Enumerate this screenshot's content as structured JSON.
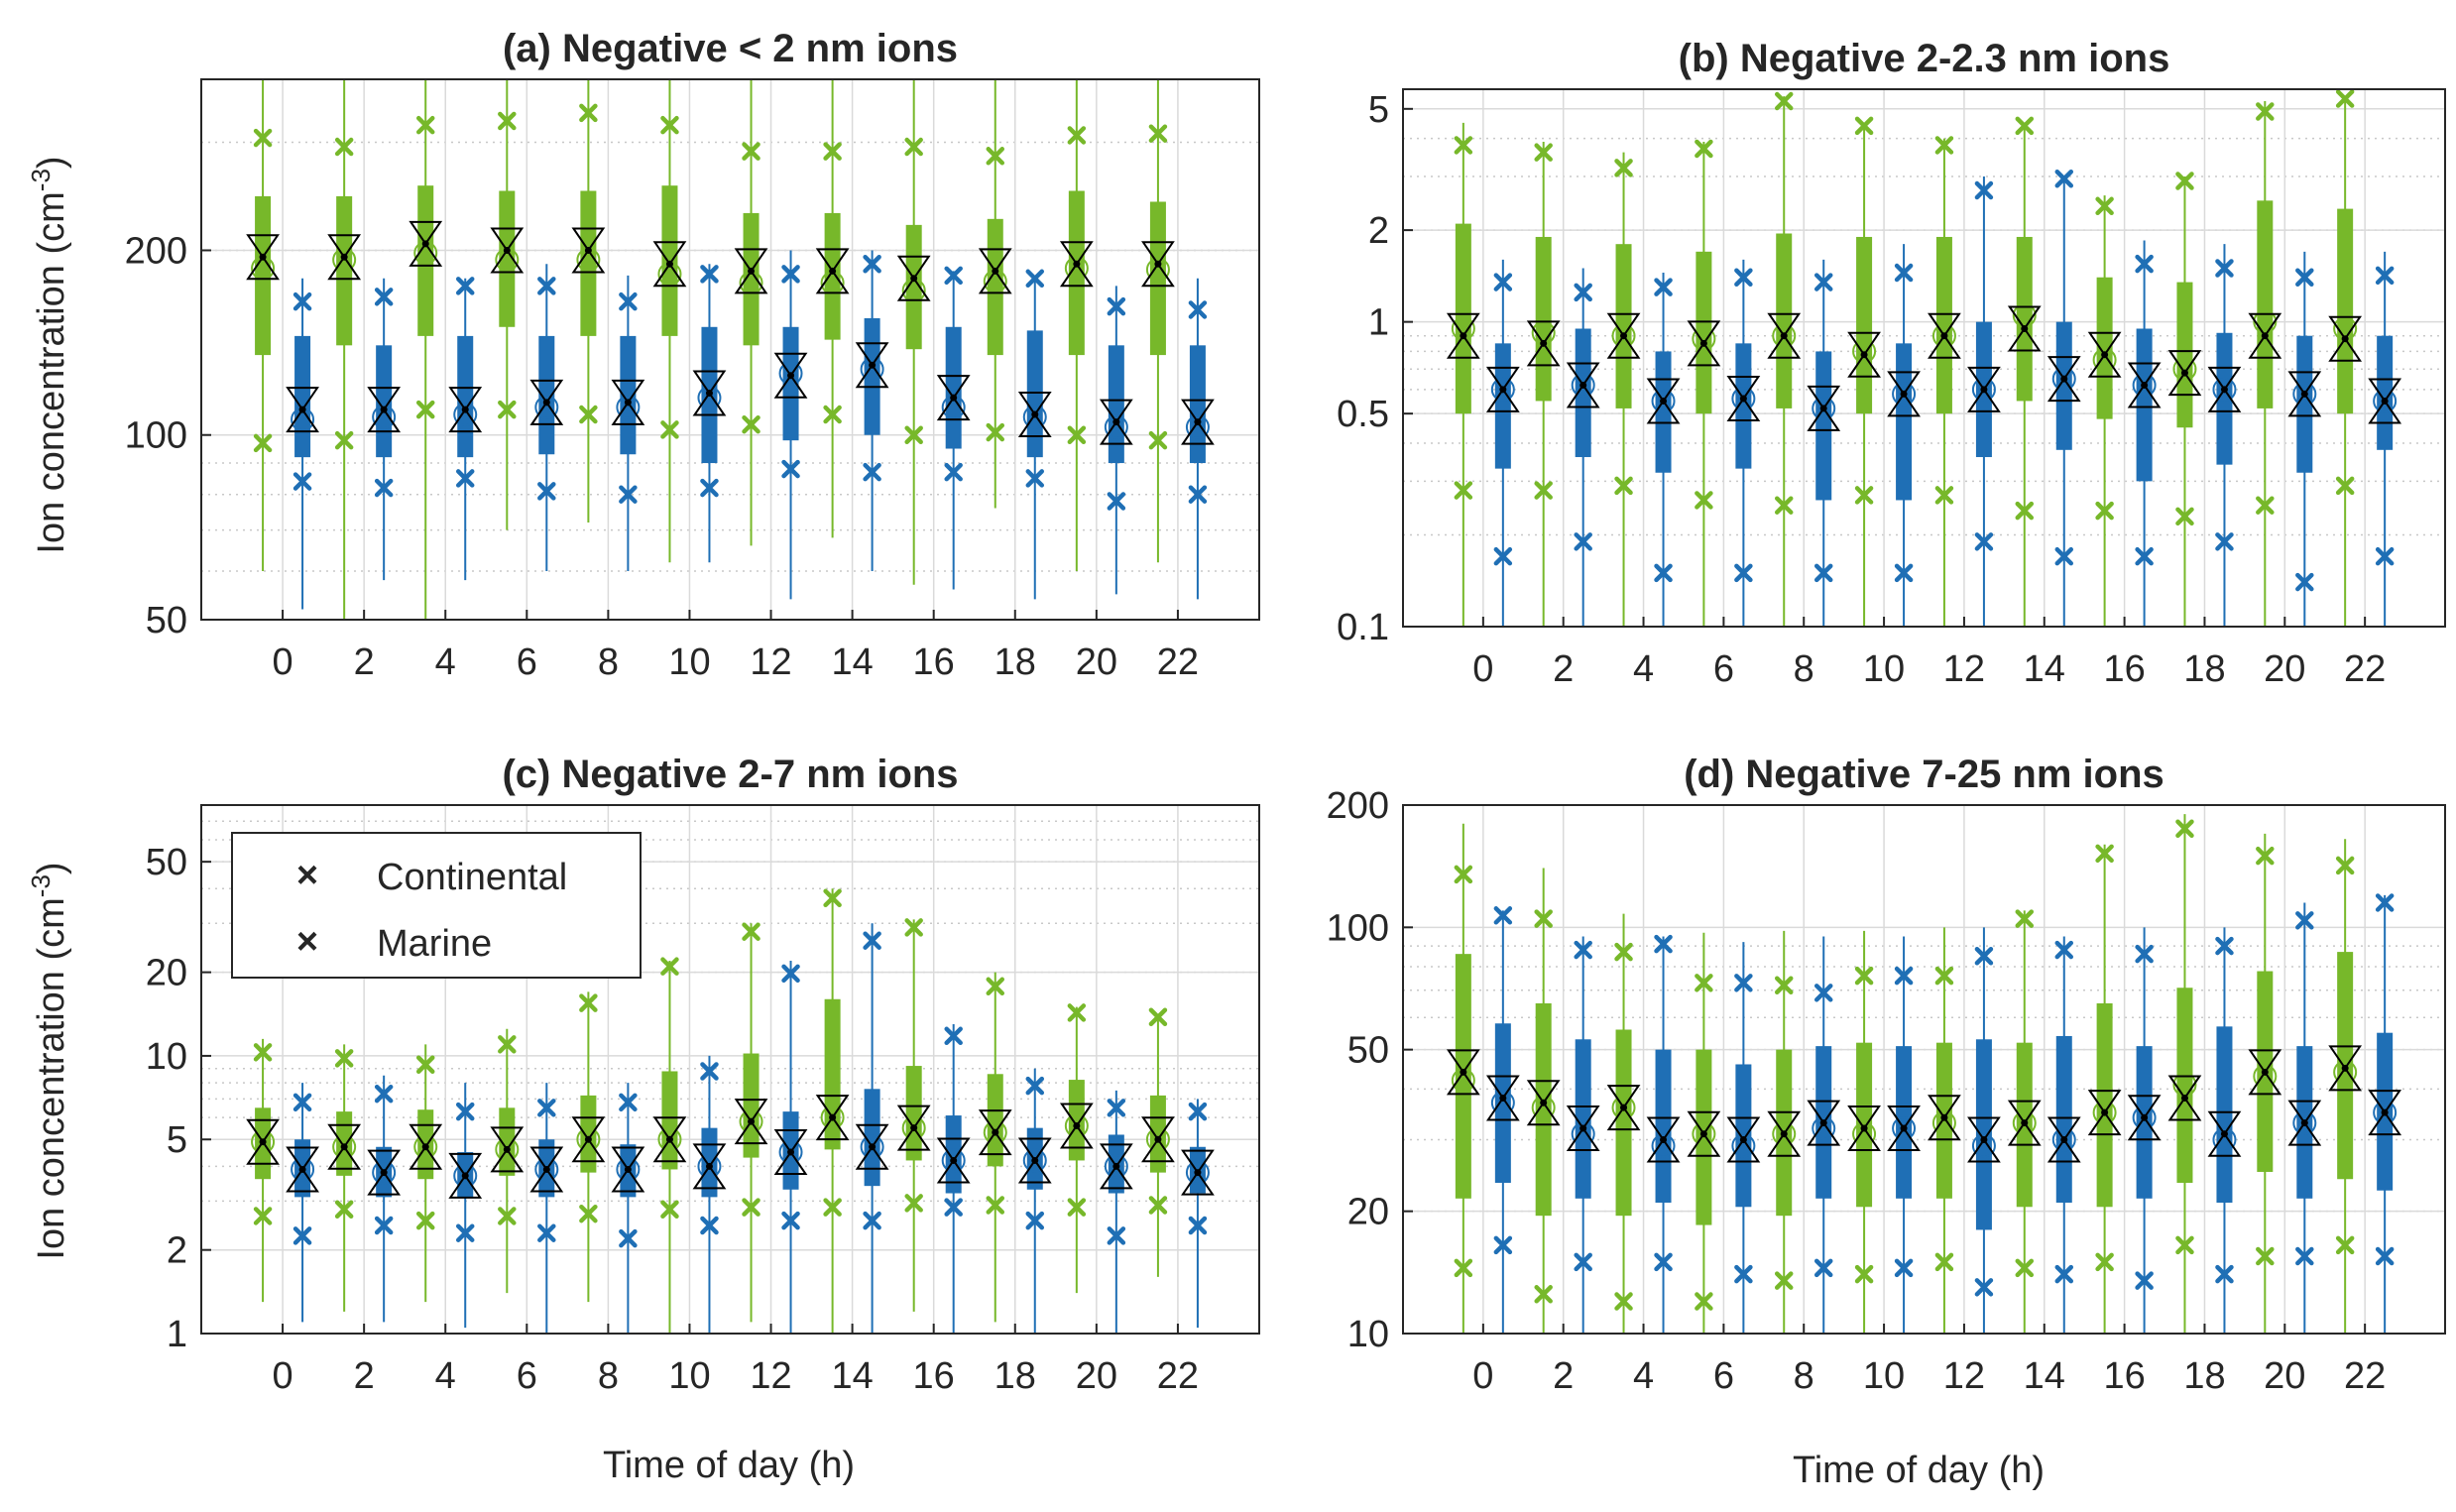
{
  "colors": {
    "continental": "#77b82a",
    "marine": "#1f6fb5",
    "axis": "#262626",
    "grid_major": "#dadada",
    "grid_minor": "#c8c8c8"
  },
  "legend": {
    "continental": "Continental",
    "marine": "Marine",
    "marker": "×"
  },
  "labels": {
    "ylabel": "Ion concentration (cm",
    "ylabel_exp": "-3",
    "ylabel_close": ")",
    "xlabel": "Time of day (h)"
  },
  "chart_data": [
    {
      "type": "box",
      "title": "(a) Negative < 2 nm ions",
      "xlabel": "",
      "ylabel": "Ion concentration (cm-3)",
      "yscale": "log",
      "ylim": [
        50,
        380
      ],
      "yticks": [
        50,
        100,
        200
      ],
      "categories": [
        "0",
        "2",
        "4",
        "6",
        "8",
        "10",
        "12",
        "14",
        "16",
        "18",
        "20",
        "22"
      ],
      "series": [
        {
          "name": "Continental",
          "color": "#77b82a",
          "whisker_low": [
            60,
            50,
            50,
            70,
            72,
            62,
            66,
            68,
            57,
            76,
            60,
            62
          ],
          "q1": [
            135,
            140,
            145,
            150,
            145,
            145,
            140,
            143,
            138,
            135,
            135,
            135
          ],
          "median": [
            195,
            195,
            205,
            200,
            200,
            190,
            185,
            185,
            180,
            185,
            190,
            190
          ],
          "q3": [
            245,
            245,
            255,
            250,
            250,
            255,
            230,
            230,
            220,
            225,
            250,
            240
          ],
          "whisker_high": [
            400,
            400,
            400,
            400,
            400,
            400,
            400,
            400,
            400,
            400,
            400,
            400
          ],
          "mean": [
            187,
            193,
            198,
            193,
            193,
            183,
            177,
            177,
            172,
            178,
            187,
            186
          ],
          "low_pct": [
            97,
            98,
            110,
            110,
            108,
            102,
            104,
            108,
            100,
            101,
            100,
            98
          ],
          "high_pct": [
            305,
            295,
            320,
            325,
            335,
            320,
            290,
            290,
            295,
            285,
            308,
            310
          ]
        },
        {
          "name": "Marine",
          "color": "#1f6fb5",
          "whisker_low": [
            52,
            58,
            58,
            60,
            60,
            62,
            54,
            60,
            56,
            54,
            55,
            54
          ],
          "q1": [
            92,
            92,
            92,
            93,
            93,
            90,
            98,
            100,
            95,
            92,
            90,
            90
          ],
          "median": [
            110,
            110,
            110,
            113,
            113,
            117,
            125,
            130,
            115,
            108,
            105,
            105
          ],
          "q3": [
            145,
            140,
            145,
            145,
            145,
            150,
            150,
            155,
            150,
            148,
            140,
            140
          ],
          "whisker_high": [
            180,
            180,
            180,
            190,
            182,
            190,
            200,
            200,
            185,
            180,
            175,
            180
          ],
          "mean": [
            106,
            107,
            108,
            111,
            111,
            115,
            126,
            128,
            111,
            107,
            103,
            103
          ],
          "low_pct": [
            84,
            82,
            85,
            81,
            80,
            82,
            88,
            87,
            87,
            85,
            78,
            80
          ],
          "high_pct": [
            165,
            168,
            175,
            175,
            165,
            183,
            183,
            190,
            182,
            180,
            162,
            160
          ]
        }
      ]
    },
    {
      "type": "box",
      "title": "(b) Negative 2-2.3 nm ions",
      "xlabel": "",
      "ylabel": "",
      "yscale": "log",
      "ylim": [
        0.1,
        5.8
      ],
      "yticks": [
        0.1,
        0.5,
        1,
        2,
        5
      ],
      "categories": [
        "0",
        "2",
        "4",
        "6",
        "8",
        "10",
        "12",
        "14",
        "16",
        "18",
        "20",
        "22"
      ],
      "series": [
        {
          "name": "Continental",
          "color": "#77b82a",
          "whisker_low": [
            0.1,
            0.1,
            0.1,
            0.1,
            0.1,
            0.1,
            0.1,
            0.1,
            0.1,
            0.1,
            0.1,
            0.1
          ],
          "q1": [
            0.5,
            0.55,
            0.52,
            0.5,
            0.52,
            0.5,
            0.5,
            0.55,
            0.48,
            0.45,
            0.52,
            0.5
          ],
          "median": [
            0.9,
            0.85,
            0.9,
            0.85,
            0.9,
            0.78,
            0.9,
            0.95,
            0.78,
            0.68,
            0.9,
            0.88
          ],
          "q3": [
            2.1,
            1.9,
            1.8,
            1.7,
            1.95,
            1.9,
            1.9,
            1.9,
            1.4,
            1.35,
            2.5,
            2.35
          ],
          "whisker_high": [
            4.5,
            3.9,
            3.6,
            3.9,
            5.5,
            4.5,
            4.0,
            4.5,
            2.6,
            3.0,
            5.3,
            5.5
          ],
          "mean": [
            0.95,
            0.92,
            0.9,
            0.88,
            0.9,
            0.8,
            0.9,
            1.05,
            0.75,
            0.7,
            1.0,
            0.95
          ],
          "low_pct": [
            0.28,
            0.28,
            0.29,
            0.26,
            0.25,
            0.27,
            0.27,
            0.24,
            0.24,
            0.23,
            0.25,
            0.29
          ],
          "high_pct": [
            3.8,
            3.6,
            3.2,
            3.7,
            5.3,
            4.4,
            3.8,
            4.4,
            2.4,
            2.9,
            4.9,
            5.4
          ]
        },
        {
          "name": "Marine",
          "color": "#1f6fb5",
          "whisker_low": [
            0.1,
            0.1,
            0.1,
            0.1,
            0.1,
            0.1,
            0.1,
            0.1,
            0.1,
            0.1,
            0.1,
            0.1
          ],
          "q1": [
            0.33,
            0.36,
            0.32,
            0.33,
            0.26,
            0.26,
            0.36,
            0.38,
            0.3,
            0.34,
            0.32,
            0.38
          ],
          "median": [
            0.6,
            0.62,
            0.55,
            0.56,
            0.52,
            0.58,
            0.6,
            0.65,
            0.62,
            0.6,
            0.58,
            0.55
          ],
          "q3": [
            0.85,
            0.95,
            0.8,
            0.85,
            0.8,
            0.85,
            1.0,
            1.0,
            0.95,
            0.92,
            0.9,
            0.9
          ],
          "whisker_high": [
            1.6,
            1.5,
            1.45,
            1.6,
            1.6,
            1.8,
            3.0,
            3.0,
            1.85,
            1.8,
            1.7,
            1.7
          ],
          "mean": [
            0.6,
            0.62,
            0.55,
            0.56,
            0.52,
            0.58,
            0.6,
            0.65,
            0.62,
            0.6,
            0.58,
            0.55
          ],
          "low_pct": [
            0.17,
            0.19,
            0.15,
            0.15,
            0.15,
            0.15,
            0.19,
            0.17,
            0.17,
            0.19,
            0.14,
            0.17
          ],
          "high_pct": [
            1.35,
            1.25,
            1.3,
            1.4,
            1.35,
            1.45,
            2.7,
            2.95,
            1.55,
            1.5,
            1.4,
            1.42
          ]
        }
      ]
    },
    {
      "type": "box",
      "title": "(c) Negative 2-7 nm ions",
      "xlabel": "Time of day (h)",
      "ylabel": "Ion concentration (cm-3)",
      "yscale": "log",
      "ylim": [
        1,
        80
      ],
      "yticks": [
        1,
        2,
        5,
        10,
        20,
        50
      ],
      "categories": [
        "0",
        "2",
        "4",
        "6",
        "8",
        "10",
        "12",
        "14",
        "16",
        "18",
        "20",
        "22"
      ],
      "series": [
        {
          "name": "Continental",
          "color": "#77b82a",
          "whisker_low": [
            1.3,
            1.2,
            1.3,
            1.4,
            1.3,
            1.0,
            1.1,
            1.0,
            1.2,
            1.1,
            1.4,
            1.6
          ],
          "q1": [
            3.6,
            3.7,
            3.6,
            3.7,
            3.8,
            3.9,
            4.3,
            4.6,
            4.2,
            4.0,
            4.2,
            3.8
          ],
          "median": [
            4.9,
            4.7,
            4.7,
            4.6,
            5.0,
            5.0,
            5.8,
            6.0,
            5.5,
            5.3,
            5.6,
            5.0
          ],
          "q3": [
            6.5,
            6.3,
            6.4,
            6.5,
            7.2,
            8.8,
            10.2,
            16.0,
            9.2,
            8.6,
            8.2,
            7.2
          ],
          "whisker_high": [
            11.5,
            11.0,
            11.0,
            12.5,
            17.0,
            22.0,
            30.0,
            40.0,
            31.0,
            20.0,
            15.0,
            14.0
          ],
          "mean": [
            4.9,
            4.7,
            4.7,
            4.6,
            5.0,
            5.0,
            5.8,
            6.0,
            5.5,
            5.3,
            5.6,
            5.0
          ],
          "low_pct": [
            2.65,
            2.8,
            2.55,
            2.65,
            2.7,
            2.8,
            2.85,
            2.85,
            2.95,
            2.9,
            2.85,
            2.9
          ],
          "high_pct": [
            10.3,
            9.8,
            9.3,
            11.0,
            15.5,
            21.0,
            28.0,
            37.0,
            29.0,
            17.8,
            14.3,
            13.8
          ]
        },
        {
          "name": "Marine",
          "color": "#1f6fb5",
          "whisker_low": [
            1.1,
            1.1,
            1.05,
            1.0,
            1.0,
            1.0,
            1.0,
            1.0,
            1.0,
            1.0,
            1.0,
            1.05
          ],
          "q1": [
            3.1,
            3.1,
            3.1,
            3.1,
            3.1,
            3.1,
            3.3,
            3.4,
            3.2,
            3.3,
            3.2,
            3.2
          ],
          "median": [
            3.9,
            3.8,
            3.7,
            3.9,
            3.9,
            4.0,
            4.5,
            4.7,
            4.2,
            4.2,
            4.0,
            3.8
          ],
          "q3": [
            5.0,
            4.7,
            4.5,
            5.0,
            4.8,
            5.5,
            6.3,
            7.6,
            6.1,
            5.5,
            5.2,
            4.7
          ],
          "whisker_high": [
            8.0,
            8.5,
            8.0,
            8.0,
            8.0,
            10.0,
            22.0,
            30.0,
            13.0,
            9.0,
            7.5,
            7.0
          ],
          "mean": [
            3.9,
            3.8,
            3.7,
            3.9,
            3.9,
            4.0,
            4.5,
            4.7,
            4.2,
            4.2,
            4.0,
            3.8
          ],
          "low_pct": [
            2.25,
            2.45,
            2.3,
            2.3,
            2.2,
            2.45,
            2.55,
            2.55,
            2.85,
            2.55,
            2.25,
            2.45
          ],
          "high_pct": [
            6.8,
            7.3,
            6.3,
            6.5,
            6.8,
            8.8,
            19.8,
            26.0,
            11.8,
            7.8,
            6.5,
            6.3
          ]
        }
      ]
    },
    {
      "type": "box",
      "title": "(d) Negative 7-25 nm ions",
      "xlabel": "Time of day (h)",
      "ylabel": "",
      "yscale": "log",
      "ylim": [
        10,
        200
      ],
      "yticks": [
        10,
        20,
        50,
        100,
        200
      ],
      "categories": [
        "0",
        "2",
        "4",
        "6",
        "8",
        "10",
        "12",
        "14",
        "16",
        "18",
        "20",
        "22"
      ],
      "series": [
        {
          "name": "Continental",
          "color": "#77b82a",
          "whisker_low": [
            10,
            10,
            10,
            10,
            10,
            10,
            10,
            10,
            10,
            10,
            10,
            10
          ],
          "q1": [
            21.5,
            19.5,
            19.5,
            18.5,
            19.5,
            20.5,
            21.5,
            20.5,
            20.5,
            23.5,
            25.0,
            24.0
          ],
          "median": [
            44,
            37,
            36,
            31,
            31,
            32,
            34,
            33,
            35,
            38,
            44,
            45
          ],
          "q3": [
            86,
            65,
            56,
            50,
            50,
            52,
            52,
            52,
            65,
            71,
            78,
            87
          ],
          "whisker_high": [
            180,
            140,
            108,
            97,
            98,
            98,
            100,
            110,
            160,
            190,
            170,
            165
          ],
          "mean": [
            42,
            36,
            36,
            31,
            31,
            31,
            33,
            33,
            35,
            41,
            43,
            44
          ],
          "low_pct": [
            14.5,
            12.5,
            12.0,
            12.0,
            13.5,
            14.0,
            15.0,
            14.5,
            15.0,
            16.5,
            15.5,
            16.5
          ],
          "high_pct": [
            135,
            105,
            87,
            73,
            72,
            76,
            76,
            105,
            152,
            175,
            150,
            142
          ]
        },
        {
          "name": "Marine",
          "color": "#1f6fb5",
          "whisker_low": [
            10,
            10,
            10,
            10,
            10,
            10,
            10,
            10,
            10,
            10,
            10,
            10
          ],
          "q1": [
            23.5,
            21.5,
            21.0,
            20.5,
            21.5,
            21.5,
            18.0,
            21.0,
            21.5,
            21.0,
            21.5,
            22.5
          ],
          "median": [
            38,
            32,
            30,
            30,
            33,
            32,
            30,
            30,
            34,
            31,
            33,
            35
          ],
          "q3": [
            58,
            53,
            50,
            46,
            51,
            51,
            53,
            54,
            51,
            57,
            51,
            55
          ],
          "whisker_high": [
            110,
            95,
            95,
            92,
            95,
            95,
            100,
            95,
            100,
            100,
            115,
            120
          ],
          "mean": [
            37,
            31,
            29,
            29,
            32,
            32,
            29,
            30,
            34,
            30,
            33,
            35
          ],
          "low_pct": [
            16.5,
            15.0,
            15.0,
            14.0,
            14.5,
            14.5,
            13.0,
            14.0,
            13.5,
            14.0,
            15.5,
            15.5
          ],
          "high_pct": [
            107,
            88,
            91,
            73,
            69,
            76,
            85,
            88,
            86,
            90,
            104,
            115
          ]
        }
      ]
    }
  ]
}
